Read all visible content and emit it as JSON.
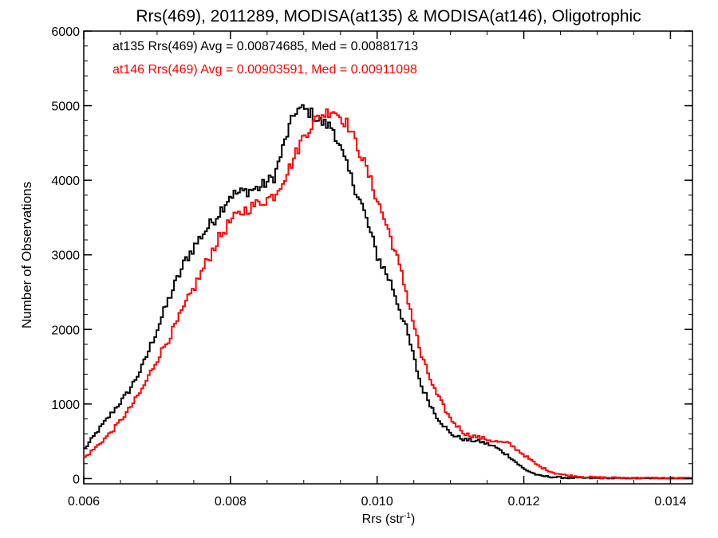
{
  "chart_data": {
    "type": "line",
    "title": "Rrs(469), 2011289, MODISA(at135) & MODISA(at146), Oligotrophic",
    "xlabel_base": "Rrs (str",
    "xlabel_sup": "-1",
    "xlabel_close": ")",
    "ylabel": "Number of Observations",
    "xlim": [
      0.006,
      0.0143
    ],
    "ylim": [
      -70,
      6000
    ],
    "xticks": [
      0.006,
      0.008,
      0.01,
      0.012,
      0.014
    ],
    "xtick_labels": [
      "0.006",
      "0.008",
      "0.010",
      "0.012",
      "0.014"
    ],
    "yticks": [
      0,
      1000,
      2000,
      3000,
      4000,
      5000,
      6000
    ],
    "ytick_labels": [
      "0",
      "1000",
      "2000",
      "3000",
      "4000",
      "5000",
      "6000"
    ],
    "step": "histogram",
    "series": [
      {
        "name": "at135",
        "color": "#000000",
        "legend": "at135 Rrs(469) Avg = 0.00874685, Med = 0.00881713",
        "x": [
          0.006,
          0.0062,
          0.0064,
          0.0066,
          0.0068,
          0.007,
          0.0072,
          0.0074,
          0.0076,
          0.0078,
          0.008,
          0.0082,
          0.0084,
          0.0086,
          0.0088,
          0.0089,
          0.009,
          0.0091,
          0.0092,
          0.0094,
          0.0096,
          0.0098,
          0.01,
          0.0102,
          0.0104,
          0.0106,
          0.0108,
          0.011,
          0.0112,
          0.0114,
          0.0116,
          0.0118,
          0.012,
          0.0122,
          0.0124,
          0.0126,
          0.013,
          0.0135,
          0.0143
        ],
        "y": [
          380,
          650,
          900,
          1150,
          1500,
          2000,
          2500,
          2950,
          3250,
          3500,
          3800,
          3850,
          3900,
          4050,
          4700,
          4950,
          4950,
          4900,
          4800,
          4700,
          4150,
          3650,
          3000,
          2600,
          2000,
          1250,
          850,
          600,
          520,
          500,
          430,
          300,
          130,
          40,
          20,
          10,
          5,
          2,
          0
        ]
      },
      {
        "name": "at146",
        "color": "#ff0000",
        "legend": "at146 Rrs(469) Avg = 0.00903591, Med = 0.00911098",
        "x": [
          0.006,
          0.0062,
          0.0064,
          0.0066,
          0.0068,
          0.007,
          0.0072,
          0.0074,
          0.0076,
          0.0078,
          0.008,
          0.0082,
          0.0084,
          0.0086,
          0.0088,
          0.009,
          0.0092,
          0.0094,
          0.0096,
          0.0098,
          0.01,
          0.0102,
          0.0104,
          0.0106,
          0.0108,
          0.011,
          0.0112,
          0.0114,
          0.0116,
          0.0118,
          0.012,
          0.0122,
          0.0124,
          0.0126,
          0.0128,
          0.013,
          0.0135,
          0.0143
        ],
        "y": [
          270,
          450,
          650,
          900,
          1200,
          1600,
          1950,
          2350,
          2750,
          3150,
          3450,
          3600,
          3700,
          3800,
          4150,
          4600,
          4850,
          4950,
          4750,
          4300,
          3750,
          3200,
          2500,
          1650,
          1150,
          800,
          600,
          550,
          500,
          470,
          320,
          170,
          80,
          40,
          25,
          15,
          8,
          5
        ]
      }
    ]
  }
}
